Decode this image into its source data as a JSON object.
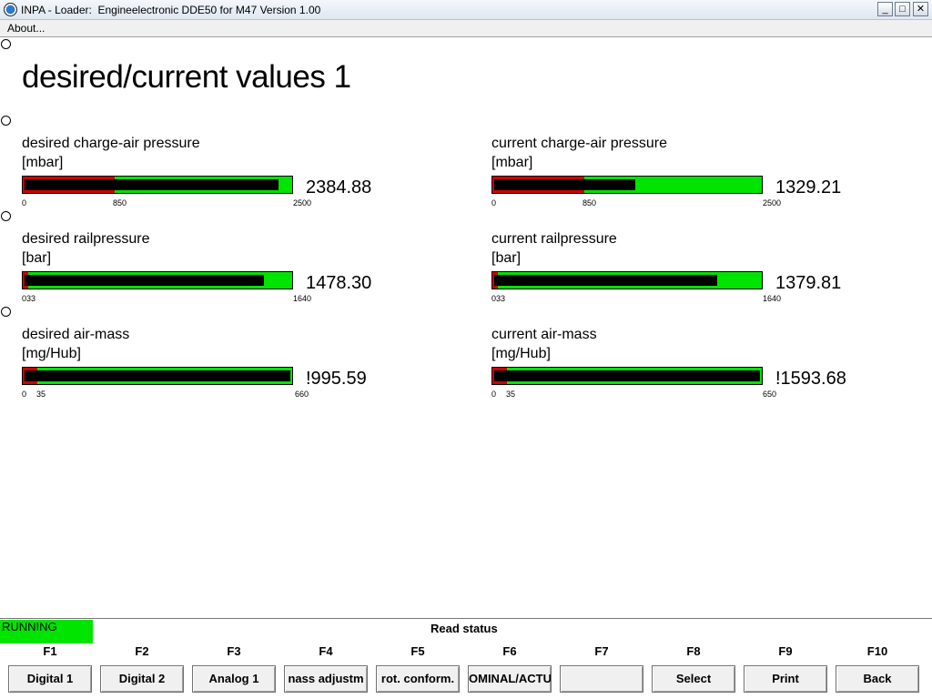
{
  "window": {
    "title": "INPA - Loader:  Engineelectronic DDE50 for M47 Version 1.00",
    "min_glyph": "_",
    "max_glyph": "□",
    "close_glyph": "✕"
  },
  "menu": {
    "about": "About..."
  },
  "page": {
    "title": "desired/current values 1"
  },
  "gauges": [
    {
      "label": "desired charge-air pressure",
      "unit": "[mbar]",
      "value": "2384.88",
      "min": "0",
      "mid": "850",
      "max": "2500",
      "red_frac": 0.34,
      "fill_frac": 0.954,
      "color_ok": "#00e400",
      "color_warn": "#d00000"
    },
    {
      "label": "current charge-air pressure",
      "unit": "[mbar]",
      "value": "1329.21",
      "min": "0",
      "mid": "850",
      "max": "2500",
      "red_frac": 0.34,
      "fill_frac": 0.532
    },
    {
      "label": "desired railpressure",
      "unit": "[bar]",
      "value": "1478.30",
      "min": "033",
      "mid": "",
      "max": "1640",
      "red_frac": 0.02,
      "fill_frac": 0.9
    },
    {
      "label": "current railpressure",
      "unit": "[bar]",
      "value": "1379.81",
      "min": "033",
      "mid": "",
      "max": "1640",
      "red_frac": 0.02,
      "fill_frac": 0.84
    },
    {
      "label": "desired air-mass",
      "unit": "[mg/Hub]",
      "value": "!995.59",
      "min": "0",
      "mid": "35",
      "max": "660",
      "red_frac": 0.053,
      "fill_frac": 1.0
    },
    {
      "label": "current air-mass",
      "unit": "[mg/Hub]",
      "value": "!1593.68",
      "min": "0",
      "mid": "35",
      "max": "650",
      "red_frac": 0.054,
      "fill_frac": 1.0
    }
  ],
  "status": {
    "running": "RUNNING",
    "read_status": "Read status"
  },
  "fkeys": [
    {
      "key": "F1",
      "label": "Digital 1"
    },
    {
      "key": "F2",
      "label": "Digital 2"
    },
    {
      "key": "F3",
      "label": "Analog 1"
    },
    {
      "key": "F4",
      "label": "nass adjustm"
    },
    {
      "key": "F5",
      "label": "rot. conform."
    },
    {
      "key": "F6",
      "label": "OMINAL/ACTU."
    },
    {
      "key": "F7",
      "label": ""
    },
    {
      "key": "F8",
      "label": "Select"
    },
    {
      "key": "F9",
      "label": "Print"
    },
    {
      "key": "F10",
      "label": "Back"
    }
  ]
}
